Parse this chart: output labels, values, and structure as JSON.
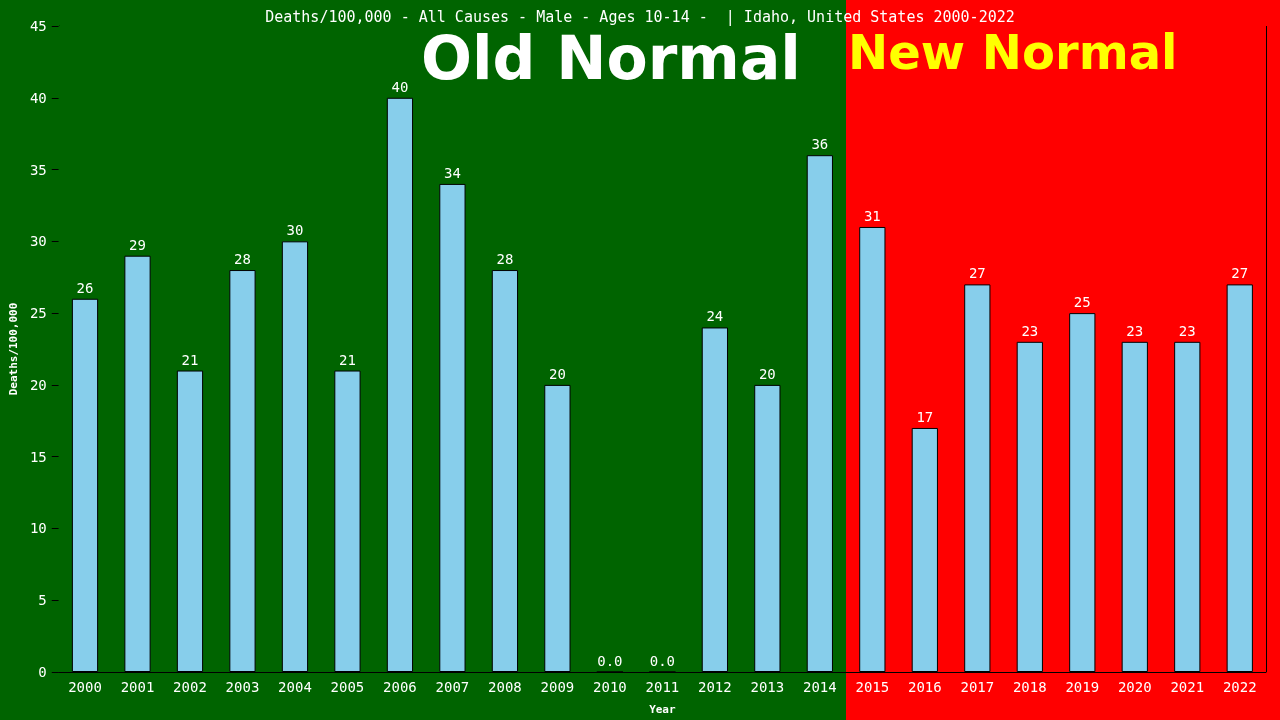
{
  "chart_data": {
    "type": "bar",
    "title": "Deaths/100,000 - All Causes - Male - Ages 10-14 -  | Idaho, United States 2000-2022",
    "xlabel": "Year",
    "ylabel": "Deaths/100,000",
    "categories": [
      "2000",
      "2001",
      "2002",
      "2003",
      "2004",
      "2005",
      "2006",
      "2007",
      "2008",
      "2009",
      "2010",
      "2011",
      "2012",
      "2013",
      "2014",
      "2015",
      "2016",
      "2017",
      "2018",
      "2019",
      "2020",
      "2021",
      "2022"
    ],
    "values": [
      26,
      29,
      21,
      28,
      30,
      21,
      40,
      34,
      28,
      20,
      0,
      0,
      24,
      20,
      36,
      31,
      17,
      27,
      23,
      25,
      23,
      23,
      27
    ],
    "value_labels": [
      "26",
      "29",
      "21",
      "28",
      "30",
      "21",
      "40",
      "34",
      "28",
      "20",
      "0.0",
      "0.0",
      "24",
      "20",
      "36",
      "31",
      "17",
      "27",
      "23",
      "25",
      "23",
      "23",
      "27"
    ],
    "color": "#87ceeb",
    "ylim": [
      0,
      45
    ],
    "yticks": [
      0,
      5,
      10,
      15,
      20,
      25,
      30,
      35,
      40,
      45
    ],
    "grid": false,
    "bands": [
      {
        "axis": "x",
        "from": "2000",
        "to": "2014",
        "label": "Old Normal",
        "color": "#006400"
      },
      {
        "axis": "x",
        "from": "2015",
        "to": "2022",
        "label": "New Normal",
        "color": "#ff0000"
      }
    ]
  }
}
